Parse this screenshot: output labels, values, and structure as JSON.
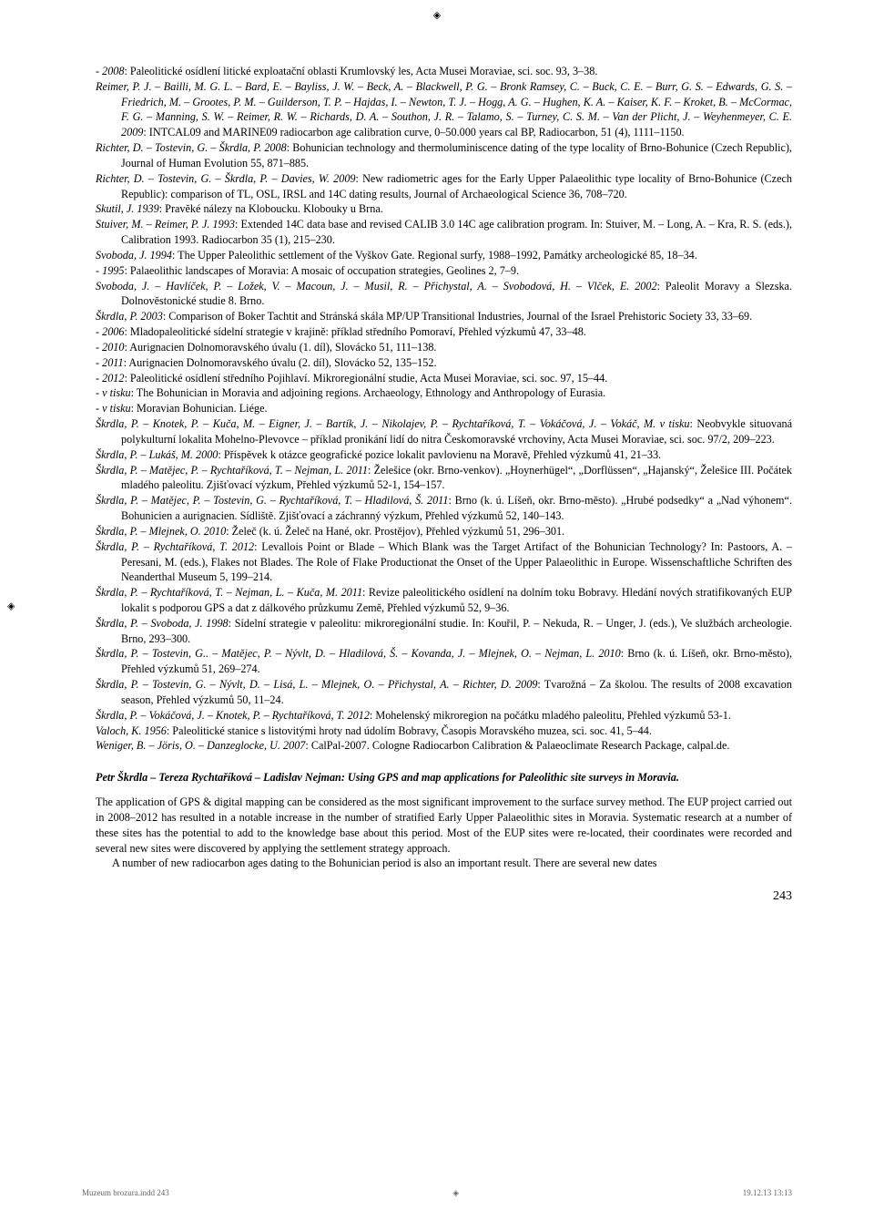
{
  "crop_glyph_top": "◈",
  "crop_glyph_left": "◈",
  "references": [
    "-      <i>2008</i>: Paleolitické osídlení litické exploatační oblasti Krumlovský les, Acta Musei Moraviae, sci. soc. 93, 3–38.",
    "<i>Reimer, P. J. – Bailli, M. G. L. – Bard, E. – Bayliss, J. W. – Beck, A. – Blackwell, P. G. – Bronk Ramsey, C. – Buck, C. E. – Burr, G. S. – Edwards, G. S. – Friedrich, M. – Grootes, P. M. – Guilderson, T. P. – Hajdas, I. – Newton, T. J. – Hogg, A. G. – Hughen, K. A. – Kaiser, K. F. – Kroket, B. – McCormac, F. G. – Manning, S. W. – Reimer, R. W. – Richards, D. A. – Southon, J. R. – Talamo, S. – Turney, C. S. M. – Van der Plicht, J. – Weyhenmeyer, C. E. 2009</i>: INTCAL09 and MARINE09 radiocarbon age calibration curve, 0–50.000 years cal BP, Radiocarbon, 51 (4), 1111–1150.",
    "<i>Richter, D. – Tostevin, G. – Škrdla, P. 2008</i>: Bohunician technology and thermoluminiscence dating of the type locality of Brno-Bohunice (Czech Republic), Journal of Human Evolution 55, 871–885.",
    "<i>Richter, D. – Tostevin, G. – Škrdla, P. – Davies, W. 2009</i>: New radiometric ages for the Early Upper Palaeolithic type locality of Brno-Bohunice (Czech Republic): comparison of TL, OSL, IRSL and 14C dating results, Journal of Archaeological Science 36, 708–720.",
    "<i>Skutil, J. 1939</i>: Pravěké nálezy na Kloboucku. Klobouky u Brna.",
    "<i>Stuiver, M. – Reimer, P. J. 1993</i>: Extended 14C data base and revised CALIB 3.0 14C age calibration program. In: Stuiver, M. – Long, A. – Kra, R. S. (eds.), Calibration 1993. Radiocarbon 35 (1), 215–230.",
    "<i>Svoboda, J. 1994</i>: The Upper Paleolithic settlement of the Vyškov Gate. Regional surfy, 1988–1992, Památky archeologické 85, 18–34.",
    "-      <i>1995</i>: Palaeolithic landscapes of Moravia: A mosaic of occupation strategies, Geolines 2, 7–9.",
    "<i>Svoboda, J. – Havlíček, P. – Ložek, V. – Macoun, J. – Musil, R. – Přichystal, A. – Svobodová, H. – Vlček, E. 2002</i>: Paleolit Moravy a Slezska. Dolnověstonické studie 8. Brno.",
    "<i>Škrdla, P. 2003</i>: Comparison of Boker Tachtit and Stránská skála MP/UP Transitional Industries, Journal of the Israel Prehistoric Society 33, 33–69.",
    "-      <i>2006</i>: Mladopaleolitické sídelní strategie v krajině: příklad středního Pomoraví, Přehled výzkumů 47, 33–48.",
    "-      <i>2010</i>: Aurignacien Dolnomoravského úvalu (1. díl), Slovácko 51, 111–138.",
    "-      <i>2011</i>: Aurignacien Dolnomoravského úvalu (2. díl), Slovácko 52, 135–152.",
    "-      <i>2012</i>: Paleolitické osídlení středního Pojihlaví. Mikroregionální studie, Acta Musei Moraviae, sci. soc. 97, 15–44.",
    "-      <i>v tisku</i>: The Bohunician in Moravia and adjoining regions. Archaeology, Ethnology and Anthropology of Eurasia.",
    "-      <i>v tisku</i>: Moravian Bohunician. Liége.",
    "<i>Škrdla, P. – Knotek, P. – Kuča, M. – Eigner, J. – Bartík, J. – Nikolajev, P. – Rychtaříková, T. – Vokáčová, J. – Vokáč, M. v tisku</i>: Neobvykle situovaná polykulturní lokalita Mohelno-Plevovce – příklad pronikání lidí do nitra Českomoravské vrchoviny, Acta Musei Moraviae, sci. soc. 97/2, 209–223.",
    "<i>Škrdla, P. – Lukáš, M. 2000</i>: Příspěvek k otázce geografické pozice lokalit pavlovienu na Moravě, Přehled výzkumů 41, 21–33.",
    "<i>Škrdla, P. – Matějec, P. – Rychtaříková, T. – Nejman, L. 2011</i>: Želešice (okr. Brno-venkov). „Hoynerhügel“, „Dorflüssen“, „Hajanský“, Želešice III. Počátek mladého paleolitu. Zjišťovací výzkum, Přehled výzkumů 52-1, 154–157.",
    "<i>Škrdla, P. – Matějec, P. – Tostevin, G. – Rychtaříková, T. – Hladilová, Š. 2011</i>: Brno (k. ú. Líšeň, okr. Brno-město). „Hrubé podsedky“ a „Nad výhonem“. Bohunicien a aurignacien. Sídliště. Zjišťovací a záchranný výzkum, Přehled výzkumů 52, 140–143.",
    "<i>Škrdla, P. – Mlejnek, O. 2010</i>: Želeč (k. ú. Želeč na Hané, okr. Prostějov), Přehled výzkumů 51, 296–301.",
    "<i>Škrdla, P. – Rychtaříková, T. 2012</i>: Levallois Point or Blade – Which Blank was the Target Artifact of the Bohunician Technology? In: Pastoors, A. – Peresani, M. (eds.), Flakes not Blades. The Role of Flake Productionat the Onset of the Upper Palaeolithic in Europe. Wissenschaftliche Schriften des Neanderthal Museum 5, 199–214.",
    "<i>Škrdla, P. – Rychtaříková, T. – Nejman, L. – Kuča, M. 2011</i>: Revize paleolitického osídlení na dolním toku Bobravy. Hledání nových stratifikovaných EUP lokalit s podporou GPS a dat z dálkového průzkumu Země, Přehled výzkumů 52, 9–36.",
    "<i>Škrdla, P. – Svoboda, J. 1998</i>: Sídelní strategie v paleolitu: mikroregionální studie. In: Kouřil, P. – Nekuda, R. – Unger, J. (eds.), Ve službách archeologie. Brno, 293–300.",
    "<i>Škrdla, P. – Tostevin, G.. – Matějec, P. – Nývlt, D. – Hladilová, Š. – Kovanda, J. – Mlejnek, O. – Nejman, L. 2010</i>: Brno (k. ú. Líšeň, okr. Brno-město), Přehled výzkumů 51, 269–274.",
    "<i>Škrdla, P. – Tostevin, G. – Nývlt, D. – Lisá, L. – Mlejnek, O. – Přichystal, A. – Richter, D. 2009</i>: Tvarožná – Za školou. The results of 2008 excavation season, Přehled výzkumů 50, 11–24.",
    "<i>Škrdla, P. – Vokáčová, J. – Knotek, P. – Rychtaříková, T. 2012</i>: Mohelenský mikroregion na počátku mladého paleolitu, Přehled výzkumů 53-1.",
    "<i>Valoch, K. 1956</i>: Paleolitické stanice s listovitými hroty nad údolím Bobravy, Časopis Moravského muzea, sci. soc. 41, 5–44.",
    "<i>Weniger, B. – Jöris, O. – Danzeglocke, U. 2007</i>: CalPal-2007. Cologne Radiocarbon Calibration & Palaeoclimate Research Package, calpal.de."
  ],
  "abstract_head": "Petr Škrdla – Tereza Rychtaříková – Ladislav Nejman: Using GPS and map applications for Paleolithic site surveys in Moravia.",
  "abstract_p1": "The application of GPS & digital mapping can be considered as the most significant improvement to the surface survey method. The EUP project carried out in 2008–2012 has resulted in a notable increase in the number of stratified Early Upper Palaeolithic sites in Moravia. Systematic research at a number of these sites has the potential to add to the knowledge base about this period. Most of the EUP sites were re-located, their coordinates were recorded and several new sites were discovered by applying the settlement strategy approach.",
  "abstract_p2": "A number of new radiocarbon ages dating to the Bohunician period is also an important result. There are several new dates",
  "page_number": "243",
  "footer_left": "Muzeum brozura.indd   243",
  "footer_right": "19.12.13   13:13"
}
